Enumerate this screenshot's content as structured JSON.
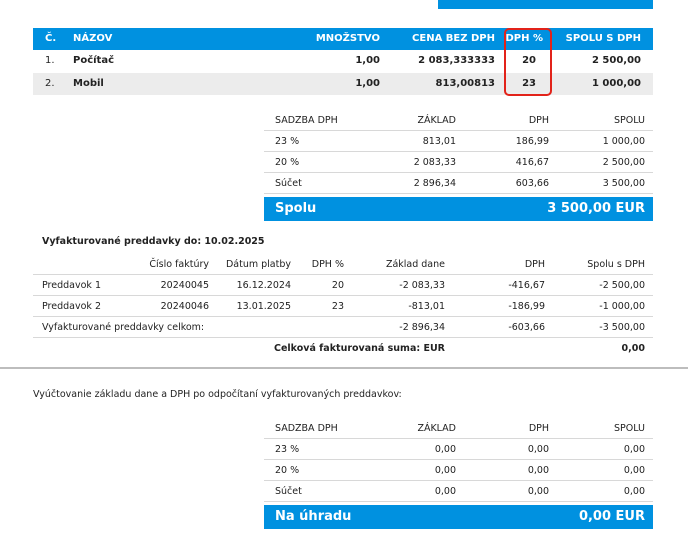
{
  "items_table": {
    "headers": {
      "no": "Č.",
      "name": "NÁZOV",
      "qty": "MNOŽSTVO",
      "price": "CENA BEZ DPH",
      "vat": "DPH %",
      "total": "SPOLU S DPH"
    },
    "rows": [
      {
        "no": "1.",
        "name": "Počítač",
        "qty": "1,00",
        "price": "2 083,333333",
        "vat": "20",
        "total": "2 500,00"
      },
      {
        "no": "2.",
        "name": "Mobil",
        "qty": "1,00",
        "price": "813,00813",
        "vat": "23",
        "total": "1 000,00"
      }
    ]
  },
  "vat_summary": {
    "headers": {
      "rate": "SADZBA DPH",
      "base": "ZÁKLAD",
      "vat": "DPH",
      "total": "SPOLU"
    },
    "rows": [
      {
        "rate": "23 %",
        "base": "813,01",
        "vat": "186,99",
        "total": "1 000,00"
      },
      {
        "rate": "20 %",
        "base": "2 083,33",
        "vat": "416,67",
        "total": "2 500,00"
      },
      {
        "rate": "Súčet",
        "base": "2 896,34",
        "vat": "603,66",
        "total": "3 500,00"
      }
    ],
    "total_label": "Spolu",
    "total_value": "3 500,00 EUR"
  },
  "advances": {
    "title": "Vyfakturované preddavky do: 10.02.2025",
    "headers": {
      "invoice_no": "Číslo faktúry",
      "date": "Dátum platby",
      "vat_pct": "DPH %",
      "base": "Základ dane",
      "vat": "DPH",
      "total": "Spolu s DPH"
    },
    "rows": [
      {
        "name": "Preddavok 1",
        "invoice_no": "20240045",
        "date": "16.12.2024",
        "vat_pct": "20",
        "base": "-2 083,33",
        "vat": "-416,67",
        "total": "-2 500,00"
      },
      {
        "name": "Preddavok 2",
        "invoice_no": "20240046",
        "date": "13.01.2025",
        "vat_pct": "23",
        "base": "-813,01",
        "vat": "-186,99",
        "total": "-1 000,00"
      }
    ],
    "sum_label": "Vyfakturované preddavky celkom:",
    "sum_base": "-2 896,34",
    "sum_vat": "-603,66",
    "sum_total": "-3 500,00",
    "grand_label": "Celková fakturovaná suma: EUR",
    "grand_value": "0,00"
  },
  "settlement_note": "Vyúčtovanie základu dane a DPH po odpočítaní vyfakturovaných preddavkov:",
  "settlement": {
    "headers": {
      "rate": "SADZBA DPH",
      "base": "ZÁKLAD",
      "vat": "DPH",
      "total": "SPOLU"
    },
    "rows": [
      {
        "rate": "23 %",
        "base": "0,00",
        "vat": "0,00",
        "total": "0,00"
      },
      {
        "rate": "20 %",
        "base": "0,00",
        "vat": "0,00",
        "total": "0,00"
      },
      {
        "rate": "Súčet",
        "base": "0,00",
        "vat": "0,00",
        "total": "0,00"
      }
    ],
    "total_label": "Na úhradu",
    "total_value": "0,00 EUR"
  }
}
